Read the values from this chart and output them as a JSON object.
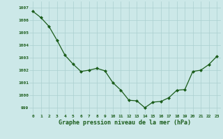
{
  "x": [
    0,
    1,
    2,
    3,
    4,
    5,
    6,
    7,
    8,
    9,
    10,
    11,
    12,
    13,
    14,
    15,
    16,
    17,
    18,
    19,
    20,
    21,
    22,
    23
  ],
  "y": [
    1006.7,
    1006.2,
    1005.5,
    1004.4,
    1003.2,
    1002.5,
    1001.9,
    1002.0,
    1002.15,
    1001.95,
    1001.0,
    1000.4,
    999.6,
    999.55,
    999.0,
    999.45,
    999.5,
    999.8,
    1000.4,
    1000.45,
    1001.9,
    1002.0,
    1002.45,
    1003.1
  ],
  "ylim": [
    998.5,
    1007.5
  ],
  "yticks": [
    999,
    1000,
    1001,
    1002,
    1003,
    1004,
    1005,
    1006,
    1007
  ],
  "xlabel": "Graphe pression niveau de la mer (hPa)",
  "line_color": "#1a5c1a",
  "marker_color": "#1a5c1a",
  "bg_color": "#cce8e8",
  "grid_color": "#aacfcf",
  "label_color": "#1a5c1a",
  "figsize": [
    3.2,
    2.0
  ],
  "dpi": 100
}
